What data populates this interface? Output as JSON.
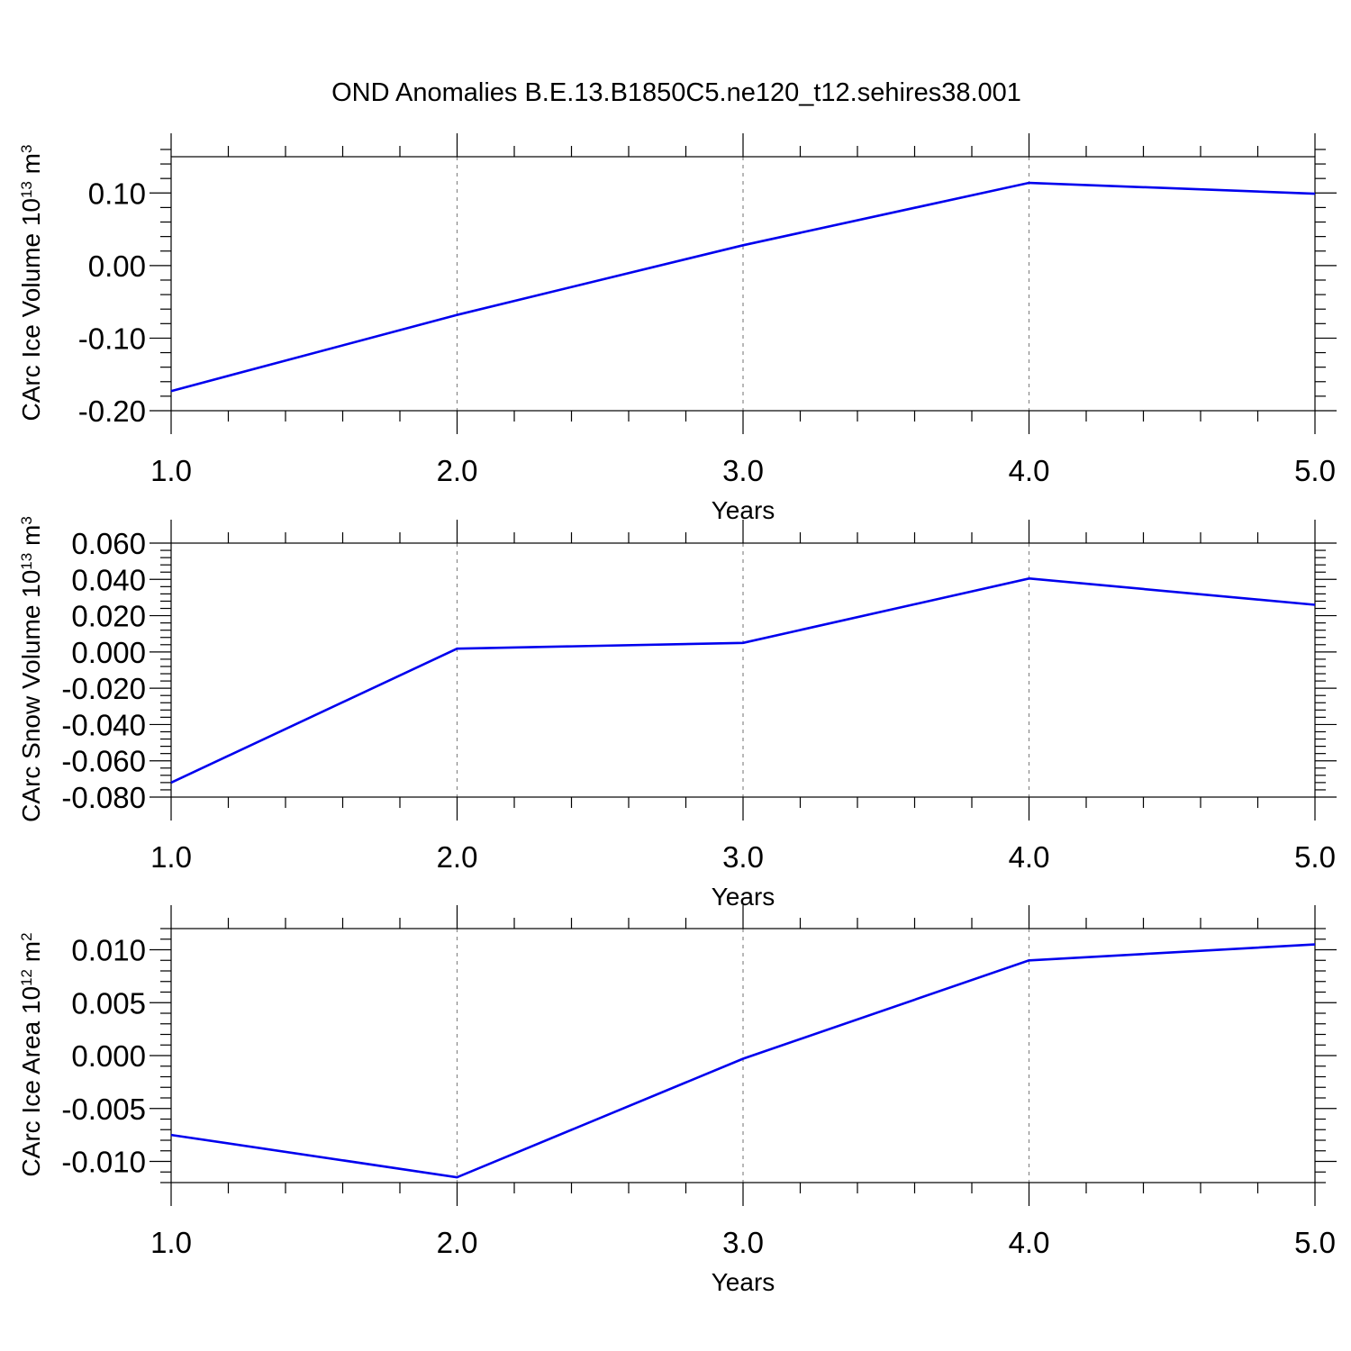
{
  "title": "OND Anomalies B.E.13.B1850C5.ne120_t12.sehires38.001",
  "colors": {
    "series": "#0000ee",
    "grid": "#888888",
    "axes": "#000000"
  },
  "chart_data": [
    {
      "type": "line",
      "xlabel": "Years",
      "ylabel": "CArc Ice Volume 10",
      "ylabel_exp": "13",
      "ylabel_unit": " m",
      "ylabel_unit_exp": "3",
      "xlim": [
        1.0,
        5.0
      ],
      "ylim": [
        -0.2,
        0.15
      ],
      "x_ticks": [
        1.0,
        2.0,
        3.0,
        4.0,
        5.0
      ],
      "x_tick_labels": [
        "1.0",
        "2.0",
        "3.0",
        "4.0",
        "5.0"
      ],
      "y_ticks": [
        -0.2,
        -0.1,
        0.0,
        0.1
      ],
      "y_tick_labels": [
        "-0.20",
        "-0.10",
        "0.00",
        "0.10"
      ],
      "grid": "vertical dashed",
      "x": [
        1.0,
        2.0,
        3.0,
        4.0,
        5.0
      ],
      "y": [
        -0.173,
        -0.068,
        0.028,
        0.114,
        0.099
      ]
    },
    {
      "type": "line",
      "xlabel": "Years",
      "ylabel": "CArc Snow Volume 10",
      "ylabel_exp": "13",
      "ylabel_unit": " m",
      "ylabel_unit_exp": "3",
      "xlim": [
        1.0,
        5.0
      ],
      "ylim": [
        -0.08,
        0.06
      ],
      "x_ticks": [
        1.0,
        2.0,
        3.0,
        4.0,
        5.0
      ],
      "x_tick_labels": [
        "1.0",
        "2.0",
        "3.0",
        "4.0",
        "5.0"
      ],
      "y_ticks": [
        -0.08,
        -0.06,
        -0.04,
        -0.02,
        0.0,
        0.02,
        0.04,
        0.06
      ],
      "y_tick_labels": [
        "-0.080",
        "-0.060",
        "-0.040",
        "-0.020",
        "0.000",
        "0.020",
        "0.040",
        "0.060"
      ],
      "grid": "vertical dashed",
      "x": [
        1.0,
        2.0,
        3.0,
        4.0,
        5.0
      ],
      "y": [
        -0.072,
        0.0018,
        0.005,
        0.0405,
        0.026
      ]
    },
    {
      "type": "line",
      "xlabel": "Years",
      "ylabel": "CArc Ice Area 10",
      "ylabel_exp": "12",
      "ylabel_unit": " m",
      "ylabel_unit_exp": "2",
      "xlim": [
        1.0,
        5.0
      ],
      "ylim": [
        -0.012,
        0.012
      ],
      "x_ticks": [
        1.0,
        2.0,
        3.0,
        4.0,
        5.0
      ],
      "x_tick_labels": [
        "1.0",
        "2.0",
        "3.0",
        "4.0",
        "5.0"
      ],
      "y_ticks": [
        -0.01,
        -0.005,
        0.0,
        0.005,
        0.01
      ],
      "y_tick_labels": [
        "-0.010",
        "-0.005",
        "0.000",
        "0.005",
        "0.010"
      ],
      "grid": "vertical dashed",
      "x": [
        1.0,
        2.0,
        3.0,
        4.0,
        5.0
      ],
      "y": [
        -0.0075,
        -0.0115,
        -0.0003,
        0.009,
        0.0105
      ]
    }
  ]
}
